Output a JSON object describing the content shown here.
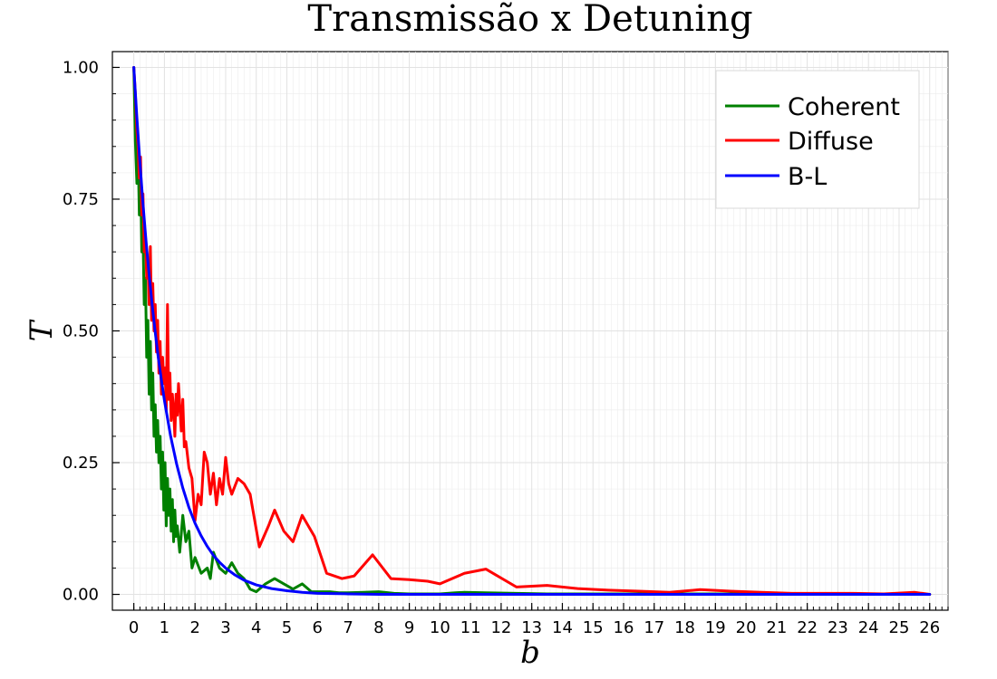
{
  "chart_data": {
    "type": "line",
    "title": "Transmissão x Detuning",
    "xlabel": "b",
    "ylabel": "T",
    "xlim": [
      -0.7,
      26.6
    ],
    "ylim": [
      -0.03,
      1.03
    ],
    "x_ticks": [
      0,
      1,
      2,
      3,
      4,
      5,
      6,
      7,
      8,
      9,
      10,
      11,
      12,
      13,
      14,
      15,
      16,
      17,
      18,
      19,
      20,
      21,
      22,
      23,
      24,
      25,
      26
    ],
    "y_ticks": [
      0.0,
      0.25,
      0.5,
      0.75,
      1.0
    ],
    "y_tick_labels": [
      "0.00",
      "0.25",
      "0.50",
      "0.75",
      "1.00"
    ],
    "grid": true,
    "legend_position": "top-right",
    "series": [
      {
        "name": "Coherent",
        "color": "#008000",
        "x": [
          0.0,
          0.05,
          0.1,
          0.14,
          0.18,
          0.22,
          0.26,
          0.3,
          0.34,
          0.38,
          0.42,
          0.46,
          0.5,
          0.54,
          0.58,
          0.62,
          0.66,
          0.7,
          0.74,
          0.78,
          0.82,
          0.86,
          0.9,
          0.94,
          0.98,
          1.02,
          1.06,
          1.1,
          1.14,
          1.18,
          1.22,
          1.26,
          1.3,
          1.34,
          1.38,
          1.42,
          1.5,
          1.6,
          1.7,
          1.8,
          1.9,
          2.0,
          2.2,
          2.4,
          2.5,
          2.6,
          2.8,
          3.0,
          3.2,
          3.4,
          3.6,
          3.8,
          4.0,
          4.3,
          4.6,
          4.9,
          5.2,
          5.5,
          5.8,
          6.1,
          6.4,
          6.7,
          7.0,
          7.5,
          8.0,
          8.5,
          9.0,
          9.5,
          10.0,
          10.5,
          10.8,
          11.5,
          12.5,
          13.5,
          14.5,
          15.5,
          16.5,
          17.5,
          18.5,
          19.5,
          20.5,
          21.5,
          22.5,
          23.5,
          24.5,
          25.5,
          26.0
        ],
        "y": [
          1.0,
          0.86,
          0.78,
          0.84,
          0.72,
          0.8,
          0.65,
          0.68,
          0.55,
          0.6,
          0.45,
          0.52,
          0.38,
          0.48,
          0.35,
          0.42,
          0.3,
          0.36,
          0.27,
          0.33,
          0.25,
          0.3,
          0.2,
          0.27,
          0.16,
          0.25,
          0.13,
          0.22,
          0.15,
          0.2,
          0.12,
          0.18,
          0.1,
          0.16,
          0.11,
          0.13,
          0.08,
          0.15,
          0.1,
          0.12,
          0.05,
          0.07,
          0.04,
          0.05,
          0.03,
          0.08,
          0.05,
          0.04,
          0.06,
          0.04,
          0.03,
          0.01,
          0.005,
          0.02,
          0.03,
          0.02,
          0.01,
          0.02,
          0.005,
          0.005,
          0.005,
          0.003,
          0.003,
          0.004,
          0.005,
          0.002,
          0.001,
          0.001,
          0.001,
          0.003,
          0.004,
          0.003,
          0.002,
          0.001,
          0.001,
          0.001,
          0.001,
          0.001,
          0.001,
          0.001,
          0.001,
          0.001,
          0.001,
          0.001,
          0.001,
          0.001,
          0.0
        ]
      },
      {
        "name": "Diffuse",
        "color": "#ff0000",
        "x": [
          0.0,
          0.05,
          0.1,
          0.14,
          0.18,
          0.22,
          0.26,
          0.3,
          0.34,
          0.38,
          0.42,
          0.46,
          0.5,
          0.54,
          0.58,
          0.62,
          0.66,
          0.7,
          0.74,
          0.78,
          0.82,
          0.86,
          0.9,
          0.94,
          0.98,
          1.02,
          1.06,
          1.1,
          1.14,
          1.18,
          1.22,
          1.26,
          1.3,
          1.34,
          1.38,
          1.42,
          1.46,
          1.5,
          1.55,
          1.6,
          1.65,
          1.7,
          1.8,
          1.9,
          2.0,
          2.1,
          2.2,
          2.3,
          2.4,
          2.5,
          2.6,
          2.7,
          2.8,
          2.9,
          3.0,
          3.1,
          3.2,
          3.4,
          3.6,
          3.8,
          4.1,
          4.4,
          4.6,
          4.9,
          5.2,
          5.5,
          5.9,
          6.3,
          6.8,
          7.2,
          7.8,
          8.4,
          9.0,
          9.6,
          10.0,
          10.8,
          11.5,
          12.5,
          13.5,
          14.5,
          15.5,
          16.5,
          17.5,
          18.5,
          19.5,
          20.5,
          21.5,
          22.5,
          23.5,
          24.5,
          25.5,
          26.0
        ],
        "y": [
          1.0,
          0.95,
          0.88,
          0.85,
          0.79,
          0.83,
          0.72,
          0.76,
          0.65,
          0.68,
          0.6,
          0.63,
          0.55,
          0.66,
          0.52,
          0.59,
          0.5,
          0.55,
          0.46,
          0.52,
          0.42,
          0.48,
          0.38,
          0.45,
          0.4,
          0.43,
          0.35,
          0.55,
          0.37,
          0.42,
          0.33,
          0.38,
          0.35,
          0.3,
          0.38,
          0.34,
          0.4,
          0.36,
          0.31,
          0.37,
          0.28,
          0.29,
          0.24,
          0.22,
          0.14,
          0.19,
          0.17,
          0.27,
          0.25,
          0.19,
          0.23,
          0.17,
          0.22,
          0.19,
          0.26,
          0.21,
          0.19,
          0.22,
          0.21,
          0.19,
          0.09,
          0.13,
          0.16,
          0.12,
          0.1,
          0.15,
          0.11,
          0.04,
          0.03,
          0.035,
          0.075,
          0.03,
          0.028,
          0.025,
          0.02,
          0.04,
          0.048,
          0.014,
          0.017,
          0.011,
          0.008,
          0.006,
          0.004,
          0.009,
          0.006,
          0.004,
          0.002,
          0.002,
          0.002,
          0.001,
          0.004,
          0.0
        ]
      },
      {
        "name": "B-L",
        "color": "#0000ff",
        "x": [
          0.0,
          0.1,
          0.2,
          0.3,
          0.4,
          0.5,
          0.6,
          0.7,
          0.8,
          0.9,
          1.0,
          1.2,
          1.4,
          1.6,
          1.8,
          2.0,
          2.2,
          2.4,
          2.6,
          2.8,
          3.0,
          3.3,
          3.6,
          4.0,
          4.5,
          5.0,
          5.5,
          6.0,
          7.0,
          8.0,
          9.0,
          10.0,
          12.0,
          14.0,
          16.0,
          18.0,
          20.0,
          22.0,
          24.0,
          26.0
        ],
        "y": [
          1.0,
          0.905,
          0.819,
          0.741,
          0.67,
          0.607,
          0.549,
          0.497,
          0.449,
          0.407,
          0.368,
          0.301,
          0.247,
          0.202,
          0.165,
          0.135,
          0.111,
          0.091,
          0.074,
          0.061,
          0.05,
          0.037,
          0.027,
          0.018,
          0.011,
          0.007,
          0.004,
          0.002,
          0.001,
          0.0,
          0.0,
          0.0,
          0.0,
          0.0,
          0.0,
          0.0,
          0.0,
          0.0,
          0.0,
          0.0
        ]
      }
    ]
  }
}
